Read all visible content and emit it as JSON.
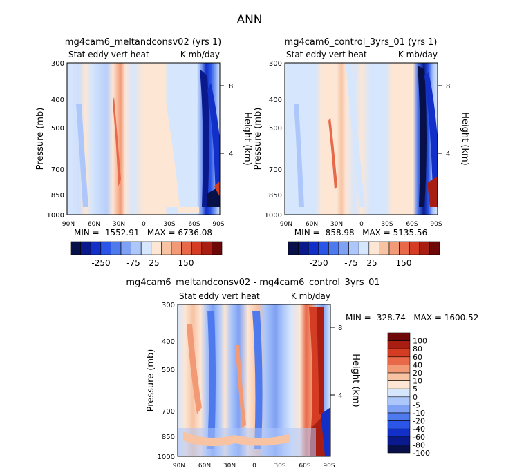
{
  "page": {
    "title": "ANN"
  },
  "colors": {
    "main_scale": [
      "#08104a",
      "#0a1a8c",
      "#1230c8",
      "#2a55e6",
      "#4f7aee",
      "#7fa1f3",
      "#aec7fa",
      "#d6e6fd",
      "#fde6d4",
      "#f8c3a3",
      "#f29a76",
      "#e8694a",
      "#d43c24",
      "#a81e12",
      "#6e0707"
    ],
    "diff_scale": [
      "#08104a",
      "#0a1a8c",
      "#1230c8",
      "#2a55e6",
      "#4f7aee",
      "#7fa1f3",
      "#aec7fa",
      "#d6e6fd",
      "#fde6d4",
      "#f8c3a3",
      "#f29a76",
      "#e8694a",
      "#d43c24",
      "#a81e12",
      "#6e0707"
    ]
  },
  "chart_data": [
    {
      "type": "heatmap",
      "name": "panel-left",
      "title": "mg4cam6_meltandconsv02 (yrs 1)",
      "subtitle_left": "Stat eddy vert heat",
      "subtitle_right": "K mb/day",
      "ylabel": "Pressure (mb)",
      "ylabel_right": "Height (km)",
      "xticks": [
        "90N",
        "60N",
        "30N",
        "0",
        "30S",
        "60S",
        "90S"
      ],
      "yticks": [
        "300",
        "400",
        "500",
        "700",
        "850",
        "1000"
      ],
      "yticks_right": [
        "8",
        "4"
      ],
      "stats": "MIN = -1552.91   MAX = 6736.08",
      "colorbar_labels": [
        "-250",
        "-75",
        "25",
        "150"
      ],
      "pattern": "mostly weak negative, positive band near 35N, strong negative 60S-75S"
    },
    {
      "type": "heatmap",
      "name": "panel-right",
      "title": "mg4cam6_control_3yrs_01 (yrs 1)",
      "subtitle_left": "Stat eddy vert heat",
      "subtitle_right": "K mb/day",
      "ylabel": "Pressure (mb)",
      "ylabel_right": "Height (km)",
      "xticks": [
        "90N",
        "60N",
        "30N",
        "0",
        "30S",
        "60S",
        "90S"
      ],
      "yticks": [
        "300",
        "400",
        "500",
        "700",
        "850",
        "1000"
      ],
      "yticks_right": [
        "8",
        "4"
      ],
      "stats": "MIN = -858.98   MAX = 5135.56",
      "colorbar_labels": [
        "-250",
        "-75",
        "25",
        "150"
      ],
      "pattern": "weak positive band 20N-40N, strong negative 60S-75S"
    },
    {
      "type": "heatmap",
      "name": "panel-diff",
      "title": "mg4cam6_meltandconsv02 - mg4cam6_control_3yrs_01",
      "subtitle_left": "Stat eddy vert heat",
      "subtitle_right": "K mb/day",
      "ylabel": "Pressure (mb)",
      "ylabel_right": "Height (km)",
      "xticks": [
        "90N",
        "60N",
        "30N",
        "0",
        "30S",
        "60S",
        "90S"
      ],
      "yticks": [
        "300",
        "400",
        "500",
        "700",
        "850",
        "1000"
      ],
      "yticks_right": [
        "8",
        "4"
      ],
      "stats": "MIN = -328.74   MAX = 1600.52",
      "colorbar_labels": [
        "100",
        "80",
        "60",
        "40",
        "20",
        "10",
        "5",
        "0",
        "-5",
        "-10",
        "-20",
        "-40",
        "-60",
        "-80",
        "-100"
      ],
      "pattern": "alternating bands, strong positive 60S-70S"
    }
  ]
}
